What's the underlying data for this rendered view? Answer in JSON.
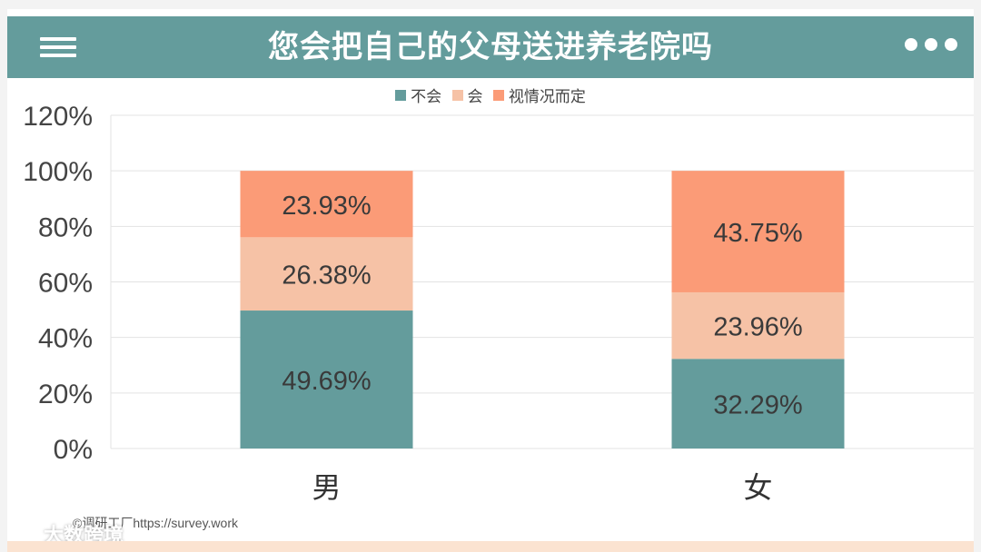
{
  "header": {
    "title": "您会把自己的父母送进养老院吗"
  },
  "icons": {
    "menu": "hamburger-menu-icon",
    "more": "more-dots-icon",
    "brand": "brand-logo-icon"
  },
  "colors": {
    "header_bg": "#649c9c",
    "series_no": "#649c9c",
    "series_yes": "#f6c2a6",
    "series_depends": "#fb9b77"
  },
  "chart_data": {
    "type": "bar",
    "stacked": true,
    "categories": [
      "男",
      "女"
    ],
    "series": [
      {
        "name": "不会",
        "values": [
          49.69,
          32.29
        ],
        "labels": [
          "49.69%",
          "32.29%"
        ]
      },
      {
        "name": "会",
        "values": [
          26.38,
          23.96
        ],
        "labels": [
          "26.38%",
          "23.96%"
        ]
      },
      {
        "name": "视情况而定",
        "values": [
          23.93,
          43.75
        ],
        "labels": [
          "23.93%",
          "43.75%"
        ]
      }
    ],
    "ylim": [
      0,
      120
    ],
    "yticks": [
      0,
      20,
      40,
      60,
      80,
      100,
      120
    ],
    "ytick_labels": [
      "0%",
      "20%",
      "40%",
      "60%",
      "80%",
      "100%",
      "120%"
    ],
    "grid": true,
    "legend_position": "top-center"
  },
  "footer": {
    "watermark": "©调研工厂https://survey.work",
    "brand": "大数跨境"
  }
}
